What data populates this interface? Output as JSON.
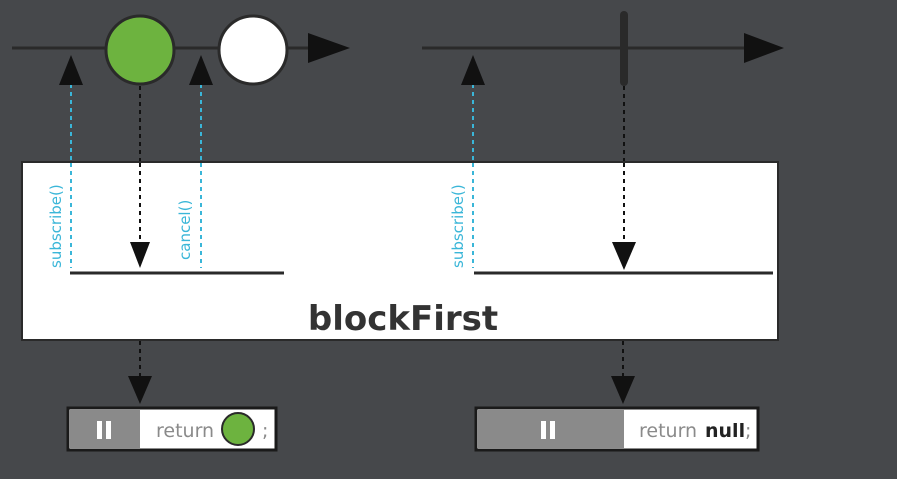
{
  "operator": {
    "label": "blockFirst"
  },
  "left": {
    "subscribe_label": "subscribe()",
    "cancel_label": "cancel()",
    "result": {
      "prefix": "return",
      "suffix": ";"
    },
    "first_item_color": "#6db33f",
    "second_item_color": "#ffffff"
  },
  "right": {
    "subscribe_label": "subscribe()",
    "result": {
      "prefix": "return",
      "value": "null",
      "suffix": ";"
    }
  },
  "colors": {
    "background": "#46484b",
    "timeline": "#2a2a2a",
    "request_line": "#3ab6d8",
    "pause_block": "#8a8a8a"
  }
}
